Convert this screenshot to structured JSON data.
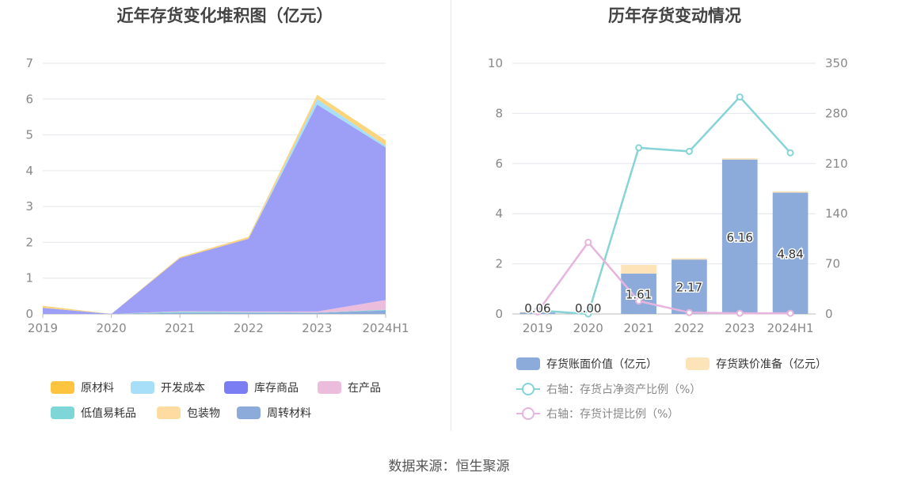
{
  "source": "数据来源：恒生聚源",
  "chart_data": [
    {
      "type": "area",
      "title": "近年存货变化堆积图（亿元）",
      "x": [
        "2019",
        "2020",
        "2021",
        "2022",
        "2023",
        "2024H1"
      ],
      "ylim": [
        0,
        7
      ],
      "yticks": [
        0,
        1,
        2,
        3,
        4,
        5,
        6,
        7
      ],
      "grid": true,
      "legend_position": "bottom",
      "series": [
        {
          "name": "周转材料",
          "color": "#8cabdb",
          "values": [
            0.0,
            0.0,
            0.03,
            0.03,
            0.03,
            0.1
          ]
        },
        {
          "name": "包装物",
          "color": "#fedba0",
          "values": [
            0.0,
            0.0,
            0.0,
            0.0,
            0.0,
            0.0
          ]
        },
        {
          "name": "低值易耗品",
          "color": "#7ed6d6",
          "values": [
            0.0,
            0.0,
            0.03,
            0.02,
            0.01,
            0.02
          ]
        },
        {
          "name": "在产品",
          "color": "#ecbcdc",
          "values": [
            0.0,
            0.0,
            0.02,
            0.02,
            0.03,
            0.27
          ]
        },
        {
          "name": "库存商品",
          "color": "#9d9ff7",
          "values": [
            0.17,
            0.0,
            1.48,
            2.03,
            5.78,
            4.26
          ]
        },
        {
          "name": "开发成本",
          "color": "#a7dff8",
          "values": [
            0.0,
            0.0,
            0.0,
            0.0,
            0.15,
            0.05
          ]
        },
        {
          "name": "原材料",
          "color": "#fbd47b",
          "values": [
            0.06,
            0.0,
            0.03,
            0.05,
            0.12,
            0.15
          ]
        }
      ],
      "legend": [
        {
          "name": "原材料",
          "color": "#fcc43f"
        },
        {
          "name": "开发成本",
          "color": "#a7dff8"
        },
        {
          "name": "库存商品",
          "color": "#7b7ef2"
        },
        {
          "name": "在产品",
          "color": "#ecbcdc"
        },
        {
          "name": "低值易耗品",
          "color": "#7ed6d6"
        },
        {
          "name": "包装物",
          "color": "#fedba0"
        },
        {
          "name": "周转材料",
          "color": "#8cabdb"
        }
      ]
    },
    {
      "type": "bar",
      "title": "历年存货变动情况",
      "x": [
        "2019",
        "2020",
        "2021",
        "2022",
        "2023",
        "2024H1"
      ],
      "ylim_left": [
        0,
        10
      ],
      "yticks_left": [
        0,
        2,
        4,
        6,
        8,
        10
      ],
      "ylim_right": [
        0,
        350
      ],
      "yticks_right": [
        0,
        70,
        140,
        210,
        280,
        350
      ],
      "grid": true,
      "legend_position": "bottom",
      "bars": [
        {
          "name": "存货账面价值（亿元）",
          "color": "#8cabdb",
          "values": [
            0.06,
            0.0,
            1.61,
            2.17,
            6.16,
            4.84
          ],
          "labels": [
            "0.06",
            "0.00",
            "1.61",
            "2.17",
            "6.16",
            "4.84"
          ]
        },
        {
          "name": "存货跌价准备（亿元）",
          "color": "#fde3b8",
          "values": [
            0.02,
            0.0,
            0.35,
            0.05,
            0.05,
            0.05
          ]
        }
      ],
      "lines": [
        {
          "name": "右轴：存货占净资产比例（%）",
          "color": "#86d4d8",
          "axis": "right",
          "values": [
            5,
            0,
            232,
            227,
            303,
            225
          ]
        },
        {
          "name": "右轴：存货计提比例（%）",
          "color": "#e6b4dc",
          "axis": "right",
          "values": [
            3,
            100,
            18,
            2,
            1,
            1
          ]
        }
      ]
    }
  ]
}
